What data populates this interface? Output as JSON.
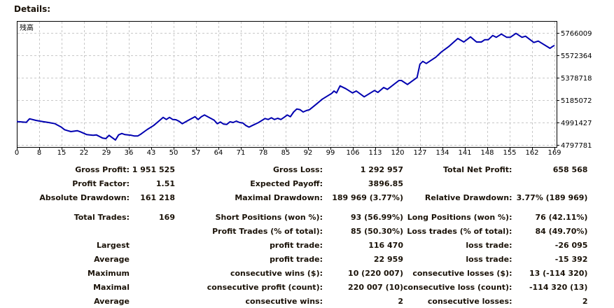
{
  "header": {
    "title": "Details:"
  },
  "chart_data": {
    "type": "line",
    "title": "",
    "legend_label": "残高",
    "xlabel": "",
    "ylabel": "",
    "x_ticks": [
      "0",
      "8",
      "15",
      "22",
      "29",
      "36",
      "43",
      "50",
      "57",
      "64",
      "71",
      "78",
      "85",
      "92",
      "99",
      "106",
      "113",
      "120",
      "127",
      "134",
      "141",
      "148",
      "155",
      "162",
      "169"
    ],
    "y_ticks": [
      "5766009",
      "5572364",
      "5378718",
      "5185072",
      "4991427",
      "4797781"
    ],
    "xlim": [
      0,
      169
    ],
    "ylim": [
      4797781,
      5766009
    ],
    "grid": true,
    "color": "#0000b0",
    "series": [
      {
        "name": "残高",
        "x": [
          0,
          3,
          4,
          6,
          8,
          10,
          12,
          14,
          15,
          16,
          17,
          19,
          20,
          22,
          24,
          25,
          27,
          28,
          29,
          30,
          31,
          32,
          33,
          34,
          36,
          37,
          38,
          39,
          41,
          43,
          45,
          46,
          47,
          48,
          49,
          50,
          51,
          52,
          54,
          56,
          57,
          58,
          59,
          60,
          62,
          63,
          64,
          65,
          66,
          67,
          68,
          69,
          70,
          71,
          72,
          73,
          74,
          76,
          78,
          79,
          80,
          81,
          82,
          83,
          84,
          85,
          86,
          87,
          88,
          89,
          90,
          91,
          92,
          94,
          96,
          99,
          99.7,
          100.5,
          101.6,
          103.4,
          105.5,
          106.7,
          109.2,
          112.4,
          113.5,
          115.3,
          116.5,
          120.1,
          120.9,
          122.8,
          125.8,
          126.7,
          127.6,
          128.7,
          131.7,
          133.5,
          135.7,
          138.6,
          140.5,
          142.6,
          144.5,
          146,
          147.1,
          148.2,
          149.6,
          150.7,
          152.3,
          154,
          155.1,
          156.9,
          158.8,
          159.9,
          162.5,
          163.9,
          167.6,
          168.3,
          169
        ],
        "y": [
          5000000,
          4993500,
          5023800,
          5009700,
          5000000,
          4991500,
          4981400,
          4951200,
          4929000,
          4920900,
          4912900,
          4920900,
          4910800,
          4886600,
          4880600,
          4884600,
          4856400,
          4852300,
          4880600,
          4860400,
          4840200,
          4884600,
          4896700,
          4886600,
          4880600,
          4874500,
          4874500,
          4890700,
          4931000,
          4965300,
          5011700,
          5035900,
          5017700,
          5035900,
          5017700,
          5015700,
          5001600,
          4981400,
          5011700,
          5041800,
          5017700,
          5041800,
          5055900,
          5041800,
          5011700,
          4981400,
          4995500,
          4977400,
          4975300,
          4997500,
          4991500,
          5003600,
          4991500,
          4987500,
          4965300,
          4951200,
          4965300,
          4991500,
          5025800,
          5017700,
          5031800,
          5017700,
          5027800,
          5017700,
          5035900,
          5055900,
          5041800,
          5082300,
          5108500,
          5102500,
          5082300,
          5094400,
          5102400,
          5146800,
          5193200,
          5243600,
          5263800,
          5247600,
          5308100,
          5283900,
          5247600,
          5263800,
          5213300,
          5267800,
          5251700,
          5294000,
          5277900,
          5354500,
          5354500,
          5320200,
          5380800,
          5495700,
          5519900,
          5501800,
          5556200,
          5602600,
          5647000,
          5717600,
          5687300,
          5731700,
          5687300,
          5687300,
          5707500,
          5707500,
          5743800,
          5727700,
          5755900,
          5727700,
          5727700,
          5762000,
          5727700,
          5737800,
          5683300,
          5695400,
          5632900,
          5647000,
          5658568
        ]
      }
    ]
  },
  "stats": {
    "rows": [
      [
        "Gross Profit:",
        "1 951 525",
        "Gross Loss:",
        "1 292 957",
        "Total Net Profit:",
        "658 568"
      ],
      [
        "Profit Factor:",
        "1.51",
        "Expected Payoff:",
        "3896.85",
        "",
        ""
      ],
      [
        "Absolute Drawdown:",
        "161 218",
        "Maximal Drawdown:",
        "189 969 (3.77%)",
        "Relative Drawdown:",
        "3.77% (189 969)"
      ],
      [
        "Total Trades:",
        "169",
        "Short Positions (won %):",
        "93 (56.99%)",
        "Long Positions (won %):",
        "76 (42.11%)"
      ],
      [
        "",
        "",
        "Profit Trades (% of total):",
        "85 (50.30%)",
        "Loss trades (% of total):",
        "84 (49.70%)"
      ],
      [
        "Largest",
        "",
        "profit trade:",
        "116 470",
        "loss trade:",
        "-26 095"
      ],
      [
        "Average",
        "",
        "profit trade:",
        "22 959",
        "loss trade:",
        "-15 392"
      ],
      [
        "Maximum",
        "",
        "consecutive wins ($):",
        "10 (220 007)",
        "consecutive losses ($):",
        "13 (-114 320)"
      ],
      [
        "Maximal",
        "",
        "consecutive profit (count):",
        "220 007 (10)",
        "consecutive loss (count):",
        "-114 320 (13)"
      ],
      [
        "Average",
        "",
        "consecutive wins:",
        "2",
        "consecutive losses:",
        "2"
      ]
    ]
  }
}
